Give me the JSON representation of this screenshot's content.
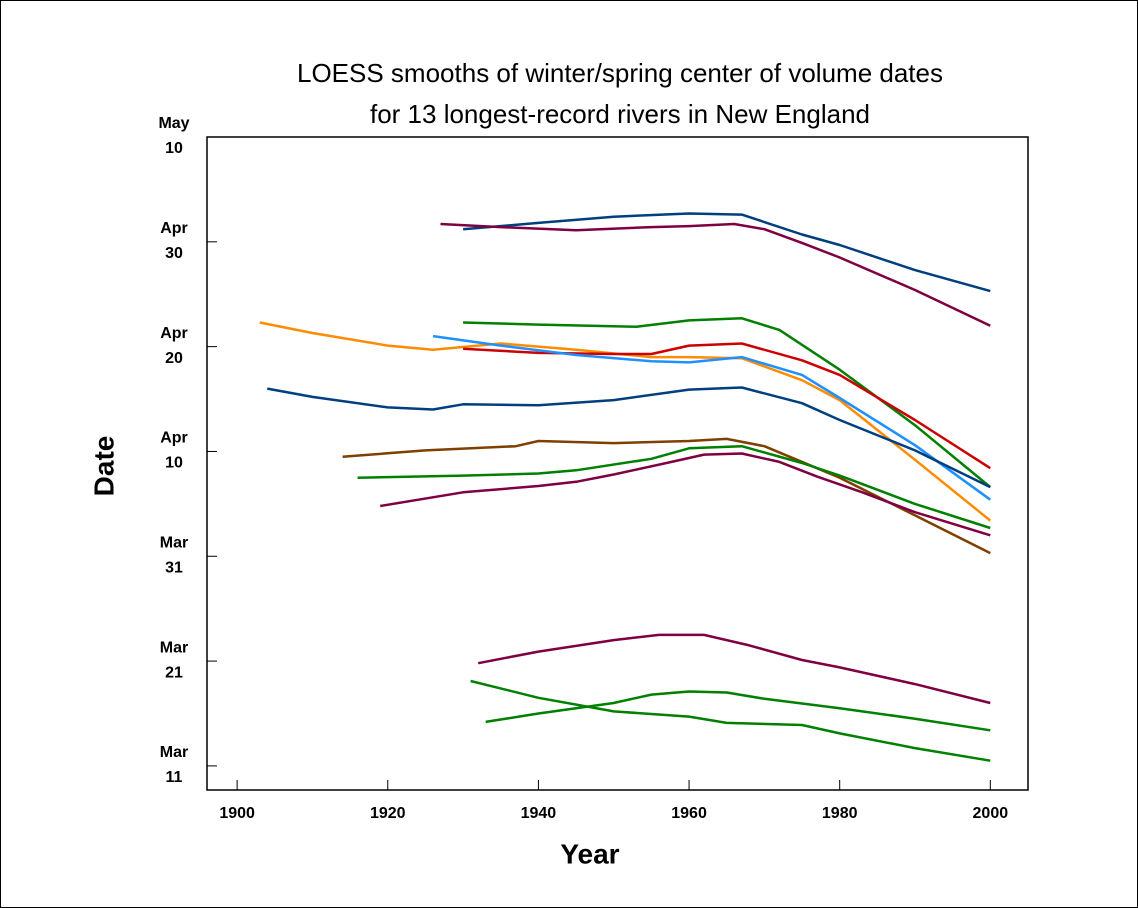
{
  "chart_data": {
    "type": "line",
    "title": [
      "LOESS smooths of winter/spring center of volume dates",
      "for 13 longest-record rivers in New England"
    ],
    "x_label": "Year",
    "y_label": "Date",
    "xlim": [
      1896,
      2005
    ],
    "xticks": [
      1900,
      1920,
      1940,
      1960,
      1980,
      2000
    ],
    "ylim": [
      67.7,
      130
    ],
    "yticks": [
      {
        "value": 70,
        "label": [
          "Mar",
          "11"
        ]
      },
      {
        "value": 80,
        "label": [
          "Mar",
          "21"
        ]
      },
      {
        "value": 90,
        "label": [
          "Mar",
          "31"
        ]
      },
      {
        "value": 100,
        "label": [
          "Apr",
          "10"
        ]
      },
      {
        "value": 110,
        "label": [
          "Apr",
          "20"
        ]
      },
      {
        "value": 120,
        "label": [
          "Apr",
          "30"
        ]
      },
      {
        "value": 130,
        "label": [
          "May",
          "10"
        ]
      }
    ],
    "series": [
      {
        "color": "#003f7f",
        "x": [
          1930,
          1940,
          1950,
          1960,
          1967,
          1975,
          1980,
          1990,
          2000
        ],
        "values": [
          121.2,
          121.8,
          122.4,
          122.7,
          122.6,
          120.7,
          119.7,
          117.3,
          115.3
        ]
      },
      {
        "color": "#7f0040",
        "x": [
          1927,
          1935,
          1945,
          1955,
          1960,
          1966,
          1970,
          1975,
          1980,
          1990,
          2000
        ],
        "values": [
          121.7,
          121.4,
          121.1,
          121.4,
          121.5,
          121.7,
          121.2,
          119.9,
          118.5,
          115.4,
          112.0
        ]
      },
      {
        "color": "#008000",
        "x": [
          1930,
          1940,
          1953,
          1960,
          1967,
          1972,
          1980,
          1990,
          2000
        ],
        "values": [
          112.3,
          112.1,
          111.9,
          112.5,
          112.7,
          111.6,
          107.8,
          102.5,
          96.6
        ]
      },
      {
        "color": "#ff8c00",
        "x": [
          1903,
          1910,
          1920,
          1926,
          1935,
          1945,
          1955,
          1960,
          1967,
          1975,
          1980,
          1990,
          2000
        ],
        "values": [
          112.3,
          111.3,
          110.1,
          109.7,
          110.3,
          109.7,
          109.0,
          109.0,
          108.9,
          106.8,
          104.9,
          99.2,
          93.4
        ]
      },
      {
        "color": "#cc0000",
        "x": [
          1930,
          1940,
          1950,
          1955,
          1960,
          1967,
          1975,
          1980,
          1990,
          2000
        ],
        "values": [
          109.8,
          109.4,
          109.3,
          109.3,
          110.1,
          110.3,
          108.7,
          107.3,
          103.0,
          98.4
        ]
      },
      {
        "color": "#1e90ff",
        "x": [
          1926,
          1935,
          1945,
          1955,
          1960,
          1967,
          1975,
          1980,
          1990,
          2000
        ],
        "values": [
          111.0,
          110.1,
          109.2,
          108.6,
          108.5,
          109.0,
          107.3,
          105.1,
          100.6,
          95.4
        ]
      },
      {
        "color": "#003f7f",
        "x": [
          1904,
          1910,
          1920,
          1926,
          1930,
          1940,
          1950,
          1960,
          1967,
          1975,
          1980,
          1990,
          2000
        ],
        "values": [
          106.0,
          105.2,
          104.2,
          104.0,
          104.5,
          104.4,
          104.9,
          105.9,
          106.1,
          104.6,
          103.0,
          100.1,
          96.6
        ]
      },
      {
        "color": "#7f3f00",
        "x": [
          1914,
          1925,
          1937,
          1940,
          1950,
          1960,
          1965,
          1970,
          1980,
          1990,
          2000
        ],
        "values": [
          99.5,
          100.1,
          100.5,
          101.0,
          100.8,
          101.0,
          101.2,
          100.5,
          97.5,
          93.9,
          90.3
        ]
      },
      {
        "color": "#008000",
        "x": [
          1916,
          1930,
          1940,
          1945,
          1955,
          1960,
          1967,
          1975,
          1980,
          1990,
          2000
        ],
        "values": [
          97.5,
          97.7,
          97.9,
          98.2,
          99.3,
          100.3,
          100.5,
          98.9,
          97.7,
          95.0,
          92.7
        ]
      },
      {
        "color": "#7f0040",
        "x": [
          1919,
          1930,
          1940,
          1945,
          1950,
          1957,
          1962,
          1967,
          1972,
          1977,
          1983,
          1990,
          2000
        ],
        "values": [
          94.8,
          96.1,
          96.7,
          97.1,
          97.8,
          98.9,
          99.7,
          99.8,
          99.0,
          97.6,
          96.1,
          94.2,
          92.0
        ]
      },
      {
        "color": "#7f0040",
        "x": [
          1932,
          1940,
          1950,
          1956,
          1962,
          1968,
          1975,
          1980,
          1990,
          2000
        ],
        "values": [
          79.8,
          80.9,
          82.0,
          82.5,
          82.5,
          81.5,
          80.1,
          79.4,
          77.8,
          76.0
        ]
      },
      {
        "color": "#008000",
        "x": [
          1931,
          1940,
          1950,
          1960,
          1965,
          1975,
          1980,
          1990,
          2000
        ],
        "values": [
          78.1,
          76.5,
          75.2,
          74.7,
          74.1,
          73.9,
          73.1,
          71.7,
          70.5
        ]
      },
      {
        "color": "#008000",
        "x": [
          1933,
          1940,
          1950,
          1955,
          1960,
          1965,
          1970,
          1980,
          1990,
          2000
        ],
        "values": [
          74.2,
          75.0,
          76.0,
          76.8,
          77.1,
          77.0,
          76.4,
          75.5,
          74.5,
          73.4
        ]
      }
    ]
  }
}
